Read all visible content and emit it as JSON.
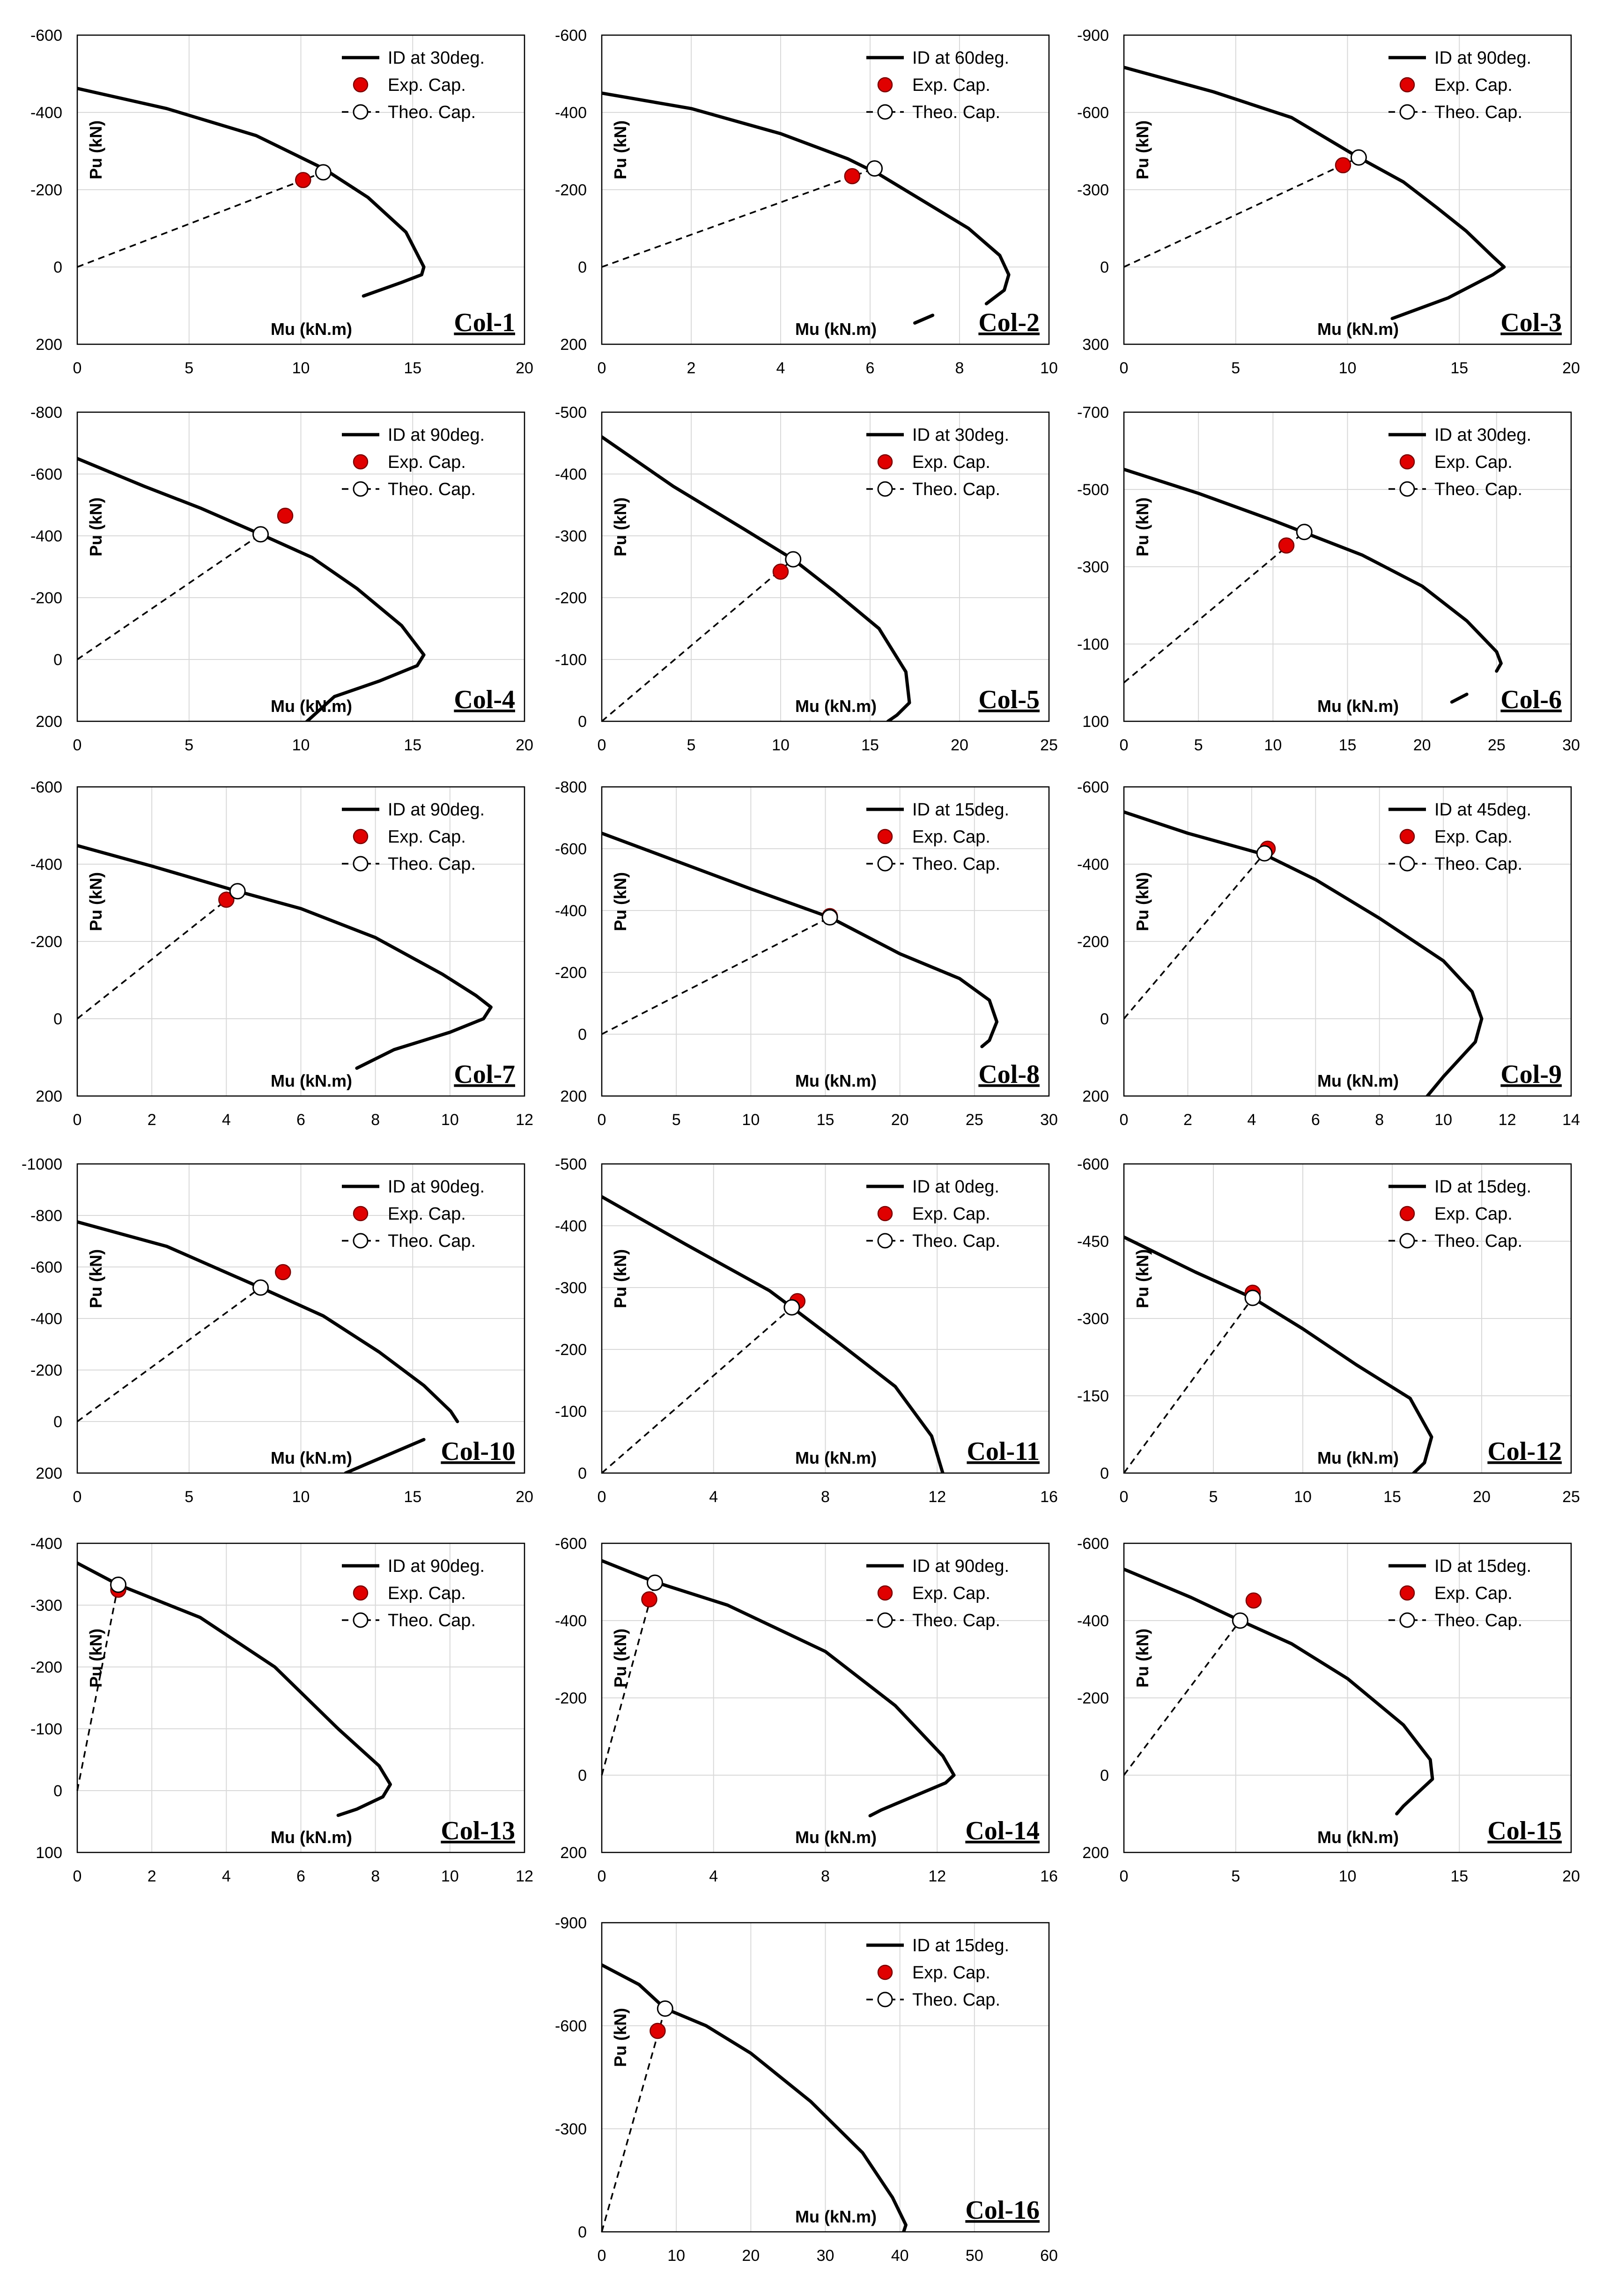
{
  "chart_data": [
    {
      "type": "line",
      "title": "Col-1",
      "ylabel": "Pu (kN)",
      "xlabel": "Mu (kN.m)",
      "xlim": [
        0,
        20
      ],
      "xticks": [
        0,
        5,
        10,
        15,
        20
      ],
      "ylim": [
        -600,
        200
      ],
      "yticks": [
        -600,
        -400,
        -200,
        0,
        200
      ],
      "legend": [
        "ID at 30deg.",
        "Exp. Cap.",
        "Theo. Cap."
      ],
      "series": [
        {
          "name": "ID at 30deg.",
          "x": [
            0,
            4,
            8,
            11,
            13,
            14.7,
            15.5,
            15.4,
            14.5,
            12.8
          ],
          "y": [
            -462,
            -410,
            -340,
            -255,
            -180,
            -90,
            0,
            20,
            40,
            75
          ]
        }
      ],
      "exp": {
        "x": 10.1,
        "y": -225
      },
      "theo": {
        "x": 11,
        "y": -245
      }
    },
    {
      "type": "line",
      "title": "Col-2",
      "ylabel": "Pu (kN)",
      "xlabel": "Mu (kN.m)",
      "xlim": [
        0,
        10
      ],
      "xticks": [
        0,
        2,
        4,
        6,
        8,
        10
      ],
      "ylim": [
        -600,
        200
      ],
      "yticks": [
        -600,
        -400,
        -200,
        0,
        200
      ],
      "legend": [
        "ID at 60deg.",
        "Exp. Cap.",
        "Theo. Cap."
      ],
      "series": [
        {
          "name": "ID at 60deg.",
          "x": [
            0,
            2,
            4,
            5.5,
            6.2,
            7.2,
            8.2,
            8.9,
            9.1,
            9.0,
            8.6
          ],
          "y": [
            -450,
            -410,
            -345,
            -280,
            -240,
            -170,
            -100,
            -30,
            20,
            60,
            95
          ]
        },
        {
          "name": "ID at 60deg. (tail)",
          "x": [
            7.4,
            7.0
          ],
          "y": [
            125,
            145
          ]
        }
      ],
      "exp": {
        "x": 5.6,
        "y": -235
      },
      "theo": {
        "x": 6.1,
        "y": -255
      }
    },
    {
      "type": "line",
      "title": "Col-3",
      "ylabel": "Pu (kN)",
      "xlabel": "Mu (kN.m)",
      "xlim": [
        0,
        20
      ],
      "xticks": [
        0,
        5,
        10,
        15,
        20
      ],
      "ylim": [
        -900,
        300
      ],
      "yticks": [
        -900,
        -600,
        -300,
        0,
        300
      ],
      "legend": [
        "ID at 90deg.",
        "Exp. Cap.",
        "Theo. Cap."
      ],
      "series": [
        {
          "name": "ID at 90deg.",
          "x": [
            0,
            4,
            7.5,
            10.4,
            12.5,
            14,
            15.3,
            16.5,
            17,
            16.5,
            14.5,
            12
          ],
          "y": [
            -775,
            -680,
            -580,
            -430,
            -330,
            -230,
            -140,
            -40,
            0,
            30,
            120,
            200
          ]
        }
      ],
      "exp": {
        "x": 9.8,
        "y": -395
      },
      "theo": {
        "x": 10.5,
        "y": -425
      }
    },
    {
      "type": "line",
      "title": "Col-4",
      "ylabel": "Pu (kN)",
      "xlabel": "Mu (kN.m)",
      "xlim": [
        0,
        20
      ],
      "xticks": [
        0,
        5,
        10,
        15,
        20
      ],
      "ylim": [
        -800,
        200
      ],
      "yticks": [
        -800,
        -600,
        -400,
        -200,
        0,
        200
      ],
      "legend": [
        "ID at 90deg.",
        "Exp. Cap.",
        "Theo. Cap."
      ],
      "series": [
        {
          "name": "ID at 90deg.",
          "x": [
            0,
            3,
            5.5,
            8.2,
            10.5,
            12.5,
            14.5,
            15.5,
            15.2,
            13.5,
            11.5,
            10.2
          ],
          "y": [
            -650,
            -560,
            -490,
            -405,
            -330,
            -230,
            -110,
            -15,
            20,
            70,
            120,
            205
          ]
        }
      ],
      "exp": {
        "x": 9.3,
        "y": -465
      },
      "theo": {
        "x": 8.2,
        "y": -405
      }
    },
    {
      "type": "line",
      "title": "Col-5",
      "ylabel": "Pu (kN)",
      "xlabel": "Mu (kN.m)",
      "xlim": [
        0,
        25
      ],
      "xticks": [
        0,
        5,
        10,
        15,
        20,
        25
      ],
      "ylim": [
        -500,
        0
      ],
      "yticks": [
        -500,
        -400,
        -300,
        -200,
        -100,
        0
      ],
      "legend": [
        "ID at 30deg.",
        "Exp. Cap.",
        "Theo. Cap."
      ],
      "series": [
        {
          "name": "ID at 30deg.",
          "x": [
            0,
            4,
            8,
            10.7,
            13,
            15.5,
            17,
            17.2,
            16.5,
            16
          ],
          "y": [
            -460,
            -380,
            -310,
            -262,
            -210,
            -150,
            -80,
            -30,
            -10,
            0
          ]
        }
      ],
      "exp": {
        "x": 10,
        "y": -242
      },
      "theo": {
        "x": 10.7,
        "y": -262
      }
    },
    {
      "type": "line",
      "title": "Col-6",
      "ylabel": "Pu (kN)",
      "xlabel": "Mu (kN.m)",
      "xlim": [
        0,
        30
      ],
      "xticks": [
        0,
        5,
        10,
        15,
        20,
        25,
        30
      ],
      "ylim": [
        -700,
        100
      ],
      "yticks": [
        -700,
        -500,
        -300,
        -100,
        100
      ],
      "legend": [
        "ID at 30deg.",
        "Exp. Cap.",
        "Theo. Cap."
      ],
      "series": [
        {
          "name": "ID at 30deg.",
          "x": [
            0,
            5,
            10,
            12,
            16,
            20,
            23,
            25,
            25.3,
            25
          ],
          "y": [
            -552,
            -490,
            -420,
            -390,
            -330,
            -250,
            -160,
            -80,
            -50,
            -30
          ]
        },
        {
          "name": "ID at 30deg. (tail)",
          "x": [
            23,
            22
          ],
          "y": [
            30,
            50
          ]
        }
      ],
      "exp": {
        "x": 10.9,
        "y": -355
      },
      "theo": {
        "x": 12.1,
        "y": -390
      }
    },
    {
      "type": "line",
      "title": "Col-7",
      "ylabel": "Pu (kN)",
      "xlabel": "Mu (kN.m)",
      "xlim": [
        0,
        12
      ],
      "xticks": [
        0,
        2,
        4,
        6,
        8,
        10,
        12
      ],
      "ylim": [
        -600,
        200
      ],
      "yticks": [
        -600,
        -400,
        -200,
        0,
        200
      ],
      "legend": [
        "ID at 90deg.",
        "Exp. Cap.",
        "Theo. Cap."
      ],
      "series": [
        {
          "name": "ID at 90deg.",
          "x": [
            0,
            2,
            4.3,
            6,
            8,
            9.8,
            10.7,
            11.1,
            10.9,
            10,
            8.5,
            7.5
          ],
          "y": [
            -448,
            -395,
            -330,
            -285,
            -210,
            -115,
            -60,
            -30,
            0,
            35,
            80,
            128
          ]
        }
      ],
      "exp": {
        "x": 4,
        "y": -308
      },
      "theo": {
        "x": 4.3,
        "y": -330
      }
    },
    {
      "type": "line",
      "title": "Col-8",
      "ylabel": "Pu (kN)",
      "xlabel": "Mu (kN.m)",
      "xlim": [
        0,
        30
      ],
      "xticks": [
        0,
        5,
        10,
        15,
        20,
        25,
        30
      ],
      "ylim": [
        -800,
        200
      ],
      "yticks": [
        -800,
        -600,
        -400,
        -200,
        0,
        200
      ],
      "legend": [
        "ID at 15deg.",
        "Exp. Cap.",
        "Theo. Cap."
      ],
      "series": [
        {
          "name": "ID at 15deg.",
          "x": [
            0,
            5,
            10,
            15.3,
            20,
            24,
            26,
            26.5,
            26,
            25.5
          ],
          "y": [
            -650,
            -560,
            -470,
            -378,
            -260,
            -180,
            -110,
            -40,
            20,
            40
          ]
        }
      ],
      "exp": {
        "x": 15.3,
        "y": -382
      },
      "theo": {
        "x": 15.3,
        "y": -378
      }
    },
    {
      "type": "line",
      "title": "Col-9",
      "ylabel": "Pu (kN)",
      "xlabel": "Mu (kN.m)",
      "xlim": [
        0,
        14
      ],
      "xticks": [
        0,
        2,
        4,
        6,
        8,
        10,
        12,
        14
      ],
      "ylim": [
        -600,
        200
      ],
      "yticks": [
        -600,
        -400,
        -200,
        0,
        200
      ],
      "legend": [
        "ID at 45deg.",
        "Exp. Cap.",
        "Theo. Cap."
      ],
      "series": [
        {
          "name": "ID at 45deg.",
          "x": [
            0,
            2,
            4.4,
            6,
            8,
            10,
            10.9,
            11.2,
            11,
            10,
            9.5
          ],
          "y": [
            -535,
            -480,
            -425,
            -360,
            -260,
            -150,
            -70,
            0,
            60,
            150,
            200
          ]
        }
      ],
      "exp": {
        "x": 4.5,
        "y": -440
      },
      "theo": {
        "x": 4.4,
        "y": -428
      }
    },
    {
      "type": "line",
      "title": "Col-10",
      "ylabel": "Pu (kN)",
      "xlabel": "Mu (kN.m)",
      "xlim": [
        0,
        20
      ],
      "xticks": [
        0,
        5,
        10,
        15,
        20
      ],
      "ylim": [
        -1000,
        200
      ],
      "yticks": [
        -1000,
        -800,
        -600,
        -400,
        -200,
        0,
        200
      ],
      "legend": [
        "ID at 90deg.",
        "Exp. Cap.",
        "Theo. Cap."
      ],
      "series": [
        {
          "name": "ID at 90deg.",
          "x": [
            0,
            4,
            8.2,
            11,
            13.5,
            15.5,
            16.7,
            17
          ],
          "y": [
            -775,
            -680,
            -520,
            -410,
            -270,
            -140,
            -40,
            0
          ]
        },
        {
          "name": "ID at 90deg. (tail)",
          "x": [
            15.5,
            12.8,
            12
          ],
          "y": [
            70,
            170,
            200
          ]
        }
      ],
      "exp": {
        "x": 9.2,
        "y": -580
      },
      "theo": {
        "x": 8.2,
        "y": -520
      }
    },
    {
      "type": "line",
      "title": "Col-11",
      "ylabel": "Pu (kN)",
      "xlabel": "Mu (kN.m)",
      "xlim": [
        0,
        16
      ],
      "xticks": [
        0,
        4,
        8,
        12,
        16
      ],
      "ylim": [
        -500,
        0
      ],
      "yticks": [
        -500,
        -400,
        -300,
        -200,
        -100,
        0
      ],
      "legend": [
        "ID at 0deg.",
        "Exp. Cap.",
        "Theo. Cap."
      ],
      "series": [
        {
          "name": "ID at 0deg.",
          "x": [
            0,
            3,
            6,
            6.8,
            8.5,
            10.5,
            11.8,
            12.2
          ],
          "y": [
            -447,
            -370,
            -295,
            -268,
            -210,
            -140,
            -60,
            0
          ]
        }
      ],
      "exp": {
        "x": 7,
        "y": -278
      },
      "theo": {
        "x": 6.8,
        "y": -268
      }
    },
    {
      "type": "line",
      "title": "Col-12",
      "ylabel": "Pu (kN)",
      "xlabel": "Mu (kN.m)",
      "xlim": [
        0,
        25
      ],
      "xticks": [
        0,
        5,
        10,
        15,
        20,
        25
      ],
      "ylim": [
        -600,
        0
      ],
      "yticks": [
        -600,
        -450,
        -300,
        -150,
        0
      ],
      "legend": [
        "ID at 15deg.",
        "Exp. Cap.",
        "Theo. Cap."
      ],
      "series": [
        {
          "name": "ID at 15deg.",
          "x": [
            0,
            4,
            7.2,
            10,
            13,
            16,
            17.2,
            16.8,
            16.2
          ],
          "y": [
            -458,
            -390,
            -340,
            -280,
            -210,
            -145,
            -70,
            -20,
            0
          ]
        }
      ],
      "exp": {
        "x": 7.2,
        "y": -350
      },
      "theo": {
        "x": 7.2,
        "y": -340
      }
    },
    {
      "type": "line",
      "title": "Col-13",
      "ylabel": "Pu (kN)",
      "xlabel": "Mu (kN.m)",
      "xlim": [
        0,
        12
      ],
      "xticks": [
        0,
        2,
        4,
        6,
        8,
        10,
        12
      ],
      "ylim": [
        -400,
        100
      ],
      "yticks": [
        -400,
        -300,
        -200,
        -100,
        0,
        100
      ],
      "legend": [
        "ID at 90deg.",
        "Exp. Cap.",
        "Theo. Cap."
      ],
      "series": [
        {
          "name": "ID at 90deg.",
          "x": [
            0,
            1.1,
            3.3,
            5.3,
            7.0,
            8.1,
            8.4,
            8.2,
            7.5,
            7.0
          ],
          "y": [
            -368,
            -333,
            -280,
            -200,
            -100,
            -40,
            -10,
            10,
            30,
            40
          ]
        }
      ],
      "exp": {
        "x": 1.1,
        "y": -325
      },
      "theo": {
        "x": 1.1,
        "y": -333
      }
    },
    {
      "type": "line",
      "title": "Col-14",
      "ylabel": "Pu (kN)",
      "xlabel": "Mu (kN.m)",
      "xlim": [
        0,
        16
      ],
      "xticks": [
        0,
        4,
        8,
        12,
        16
      ],
      "ylim": [
        -600,
        200
      ],
      "yticks": [
        -600,
        -400,
        -200,
        0,
        200
      ],
      "legend": [
        "ID at 90deg.",
        "Exp. Cap.",
        "Theo. Cap."
      ],
      "series": [
        {
          "name": "ID at 90deg.",
          "x": [
            0,
            1.9,
            4.5,
            8,
            10.5,
            12.2,
            12.6,
            12.3,
            10,
            9.6
          ],
          "y": [
            -555,
            -500,
            -440,
            -320,
            -180,
            -50,
            0,
            20,
            90,
            105
          ]
        }
      ],
      "exp": {
        "x": 1.7,
        "y": -455
      },
      "theo": {
        "x": 1.9,
        "y": -498
      }
    },
    {
      "type": "line",
      "title": "Col-15",
      "ylabel": "Pu (kN)",
      "xlabel": "Mu (kN.m)",
      "xlim": [
        0,
        20
      ],
      "xticks": [
        0,
        5,
        10,
        15,
        20
      ],
      "ylim": [
        -600,
        200
      ],
      "yticks": [
        -600,
        -400,
        -200,
        0,
        200
      ],
      "legend": [
        "ID at 15deg.",
        "Exp. Cap.",
        "Theo. Cap."
      ],
      "series": [
        {
          "name": "ID at 15deg.",
          "x": [
            0,
            3,
            5.2,
            7.5,
            10,
            12.5,
            13.7,
            13.8,
            12.5,
            12.2
          ],
          "y": [
            -533,
            -460,
            -400,
            -340,
            -250,
            -130,
            -40,
            10,
            80,
            100
          ]
        }
      ],
      "exp": {
        "x": 5.8,
        "y": -452
      },
      "theo": {
        "x": 5.2,
        "y": -400
      }
    },
    {
      "type": "line",
      "title": "Col-16",
      "ylabel": "Pu (kN)",
      "xlabel": "Mu (kN.m)",
      "xlim": [
        0,
        60
      ],
      "xticks": [
        0,
        10,
        20,
        30,
        40,
        50,
        60
      ],
      "ylim": [
        -900,
        0
      ],
      "yticks": [
        -900,
        -600,
        -300,
        0
      ],
      "legend": [
        "ID at 15deg.",
        "Exp. Cap.",
        "Theo. Cap."
      ],
      "series": [
        {
          "name": "ID at 15deg.",
          "x": [
            0,
            5,
            8.5,
            14,
            20,
            28,
            35,
            39,
            40.8,
            40.5
          ],
          "y": [
            -777,
            -720,
            -650,
            -600,
            -520,
            -380,
            -230,
            -100,
            -20,
            0
          ]
        }
      ],
      "exp": {
        "x": 7.5,
        "y": -585
      },
      "theo": {
        "x": 8.5,
        "y": -650
      }
    }
  ]
}
